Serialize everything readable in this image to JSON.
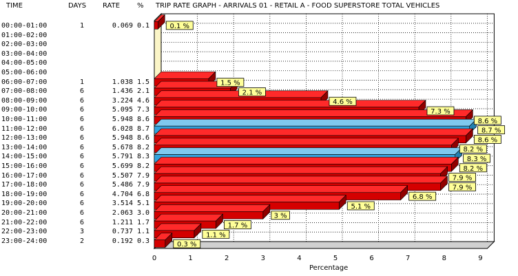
{
  "header": {
    "time": "TIME",
    "days": "DAYS",
    "rate": "RATE",
    "percent": "%",
    "title": "TRIP RATE GRAPH - ARRIVALS   01 - RETAIL  A - FOOD SUPERSTORE      TOTAL VEHICLES"
  },
  "rows": [
    {
      "time": "00:00-01:00",
      "days": "1",
      "rate": "0.069",
      "pct": "0.1"
    },
    {
      "time": "01:00-02:00",
      "days": "",
      "rate": "",
      "pct": ""
    },
    {
      "time": "02:00-03:00",
      "days": "",
      "rate": "",
      "pct": ""
    },
    {
      "time": "03:00-04:00",
      "days": "",
      "rate": "",
      "pct": ""
    },
    {
      "time": "04:00-05:00",
      "days": "",
      "rate": "",
      "pct": ""
    },
    {
      "time": "05:00-06:00",
      "days": "",
      "rate": "",
      "pct": ""
    },
    {
      "time": "06:00-07:00",
      "days": "1",
      "rate": "1.038",
      "pct": "1.5"
    },
    {
      "time": "07:00-08:00",
      "days": "6",
      "rate": "1.436",
      "pct": "2.1"
    },
    {
      "time": "08:00-09:00",
      "days": "6",
      "rate": "3.224",
      "pct": "4.6"
    },
    {
      "time": "09:00-10:00",
      "days": "6",
      "rate": "5.095",
      "pct": "7.3"
    },
    {
      "time": "10:00-11:00",
      "days": "6",
      "rate": "5.948",
      "pct": "8.6"
    },
    {
      "time": "11:00-12:00",
      "days": "6",
      "rate": "6.028",
      "pct": "8.7"
    },
    {
      "time": "12:00-13:00",
      "days": "6",
      "rate": "5.948",
      "pct": "8.6"
    },
    {
      "time": "13:00-14:00",
      "days": "6",
      "rate": "5.678",
      "pct": "8.2"
    },
    {
      "time": "14:00-15:00",
      "days": "6",
      "rate": "5.791",
      "pct": "8.3"
    },
    {
      "time": "15:00-16:00",
      "days": "6",
      "rate": "5.699",
      "pct": "8.2"
    },
    {
      "time": "16:00-17:00",
      "days": "6",
      "rate": "5.507",
      "pct": "7.9"
    },
    {
      "time": "17:00-18:00",
      "days": "6",
      "rate": "5.486",
      "pct": "7.9"
    },
    {
      "time": "18:00-19:00",
      "days": "6",
      "rate": "4.704",
      "pct": "6.8"
    },
    {
      "time": "19:00-20:00",
      "days": "6",
      "rate": "3.514",
      "pct": "5.1"
    },
    {
      "time": "20:00-21:00",
      "days": "6",
      "rate": "2.063",
      "pct": "3.0"
    },
    {
      "time": "21:00-22:00",
      "days": "6",
      "rate": "1.211",
      "pct": "1.7"
    },
    {
      "time": "22:00-23:00",
      "days": "3",
      "rate": "0.737",
      "pct": "1.1"
    },
    {
      "time": "23:00-24:00",
      "days": "2",
      "rate": "0.192",
      "pct": "0.3"
    }
  ],
  "chart_data": {
    "type": "bar",
    "orientation": "horizontal",
    "three_d": true,
    "categories": [
      "00:00-01:00",
      "01:00-02:00",
      "02:00-03:00",
      "03:00-04:00",
      "04:00-05:00",
      "05:00-06:00",
      "06:00-07:00",
      "07:00-08:00",
      "08:00-09:00",
      "09:00-10:00",
      "10:00-11:00",
      "11:00-12:00",
      "12:00-13:00",
      "13:00-14:00",
      "14:00-15:00",
      "15:00-16:00",
      "16:00-17:00",
      "17:00-18:00",
      "18:00-19:00",
      "19:00-20:00",
      "20:00-21:00",
      "21:00-22:00",
      "22:00-23:00",
      "23:00-24:00"
    ],
    "values": [
      0.1,
      null,
      null,
      null,
      null,
      null,
      1.5,
      2.1,
      4.6,
      7.3,
      8.6,
      8.7,
      8.6,
      8.2,
      8.3,
      8.2,
      7.9,
      7.9,
      6.8,
      5.1,
      3.0,
      1.7,
      1.1,
      0.3
    ],
    "bar_labels": [
      "0.1 %",
      "",
      "",
      "",
      "",
      "",
      "1.5 %",
      "2.1 %",
      "4.6 %",
      "7.3 %",
      "8.6 %",
      "8.7 %",
      "8.6 %",
      "8.2 %",
      "8.3 %",
      "8.2 %",
      "7.9 %",
      "7.9 %",
      "6.8 %",
      "5.1 %",
      "3 %",
      "1.7 %",
      "1.1 %",
      "0.3 %"
    ],
    "highlighted_categories": [
      "11:00-12:00",
      "14:00-15:00"
    ],
    "xlabel": "Percentage",
    "xlim": [
      0,
      9
    ],
    "xticks": [
      "0",
      "1",
      "2",
      "3",
      "4",
      "5",
      "6",
      "7",
      "8",
      "9"
    ],
    "grid": true,
    "colors": {
      "bar": "#d40000",
      "bar_top": "#ff2a2a",
      "bar_edge": "#000000",
      "highlight": "#33a3dc",
      "label_bg": "#ffff99",
      "back_wall": "#ffffff",
      "left_wall": "#fbf5c7",
      "floor": "#d0d0d0",
      "grid": "#000000"
    }
  }
}
